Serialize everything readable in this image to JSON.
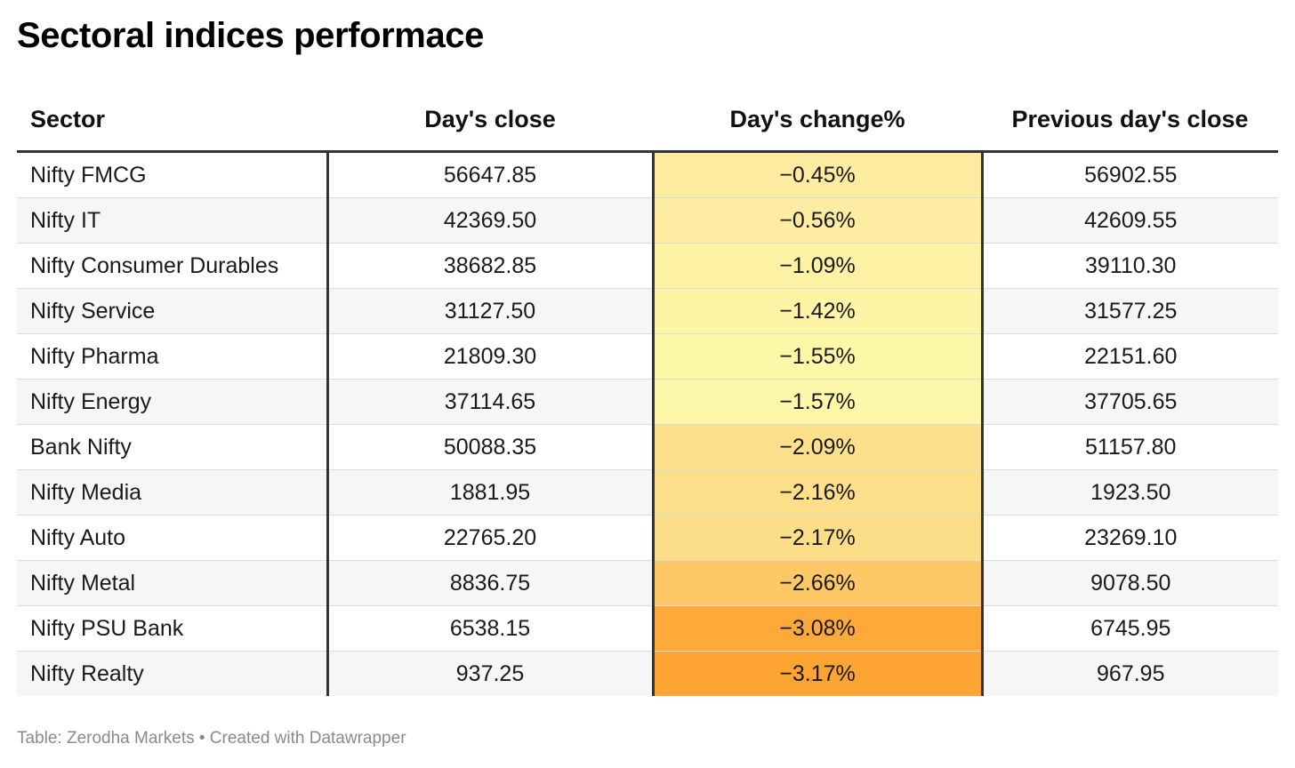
{
  "title": "Sectoral indices performace",
  "source": "Table: Zerodha Markets • Created with Datawrapper",
  "colors": {
    "scale_low": "#fdf8a8",
    "scale_mid": "#fde08a",
    "scale_high": "#fea433"
  },
  "chart_data": {
    "type": "table",
    "title": "Sectoral indices performace",
    "columns": [
      "Sector",
      "Day's close",
      "Day's change%",
      "Previous day's close"
    ],
    "rows": [
      {
        "sector": "Nifty FMCG",
        "close": "56647.85",
        "change": "−0.45%",
        "change_value": -0.45,
        "prev": "56902.55",
        "color": "#fdeba0"
      },
      {
        "sector": "Nifty IT",
        "close": "42369.50",
        "change": "−0.56%",
        "change_value": -0.56,
        "prev": "42609.55",
        "color": "#fdeca1"
      },
      {
        "sector": "Nifty Consumer Durables",
        "close": "38682.85",
        "change": "−1.09%",
        "change_value": -1.09,
        "prev": "39110.30",
        "color": "#fdf1a4"
      },
      {
        "sector": "Nifty Service",
        "close": "31127.50",
        "change": "−1.42%",
        "change_value": -1.42,
        "prev": "31577.25",
        "color": "#fdf4a6"
      },
      {
        "sector": "Nifty Pharma",
        "close": "21809.30",
        "change": "−1.55%",
        "change_value": -1.55,
        "prev": "22151.60",
        "color": "#fdf7a8"
      },
      {
        "sector": "Nifty Energy",
        "close": "37114.65",
        "change": "−1.57%",
        "change_value": -1.57,
        "prev": "37705.65",
        "color": "#fdf8a9"
      },
      {
        "sector": "Bank Nifty",
        "close": "50088.35",
        "change": "−2.09%",
        "change_value": -2.09,
        "prev": "51157.80",
        "color": "#fde08b"
      },
      {
        "sector": "Nifty Media",
        "close": "1881.95",
        "change": "−2.16%",
        "change_value": -2.16,
        "prev": "1923.50",
        "color": "#fddf89"
      },
      {
        "sector": "Nifty Auto",
        "close": "22765.20",
        "change": "−2.17%",
        "change_value": -2.17,
        "prev": "23269.10",
        "color": "#fdde88"
      },
      {
        "sector": "Nifty Metal",
        "close": "8836.75",
        "change": "−2.66%",
        "change_value": -2.66,
        "prev": "9078.50",
        "color": "#fdc865"
      },
      {
        "sector": "Nifty PSU Bank",
        "close": "6538.15",
        "change": "−3.08%",
        "change_value": -3.08,
        "prev": "6745.95",
        "color": "#fea939"
      },
      {
        "sector": "Nifty Realty",
        "close": "937.25",
        "change": "−3.17%",
        "change_value": -3.17,
        "prev": "967.95",
        "color": "#fea433"
      }
    ]
  }
}
